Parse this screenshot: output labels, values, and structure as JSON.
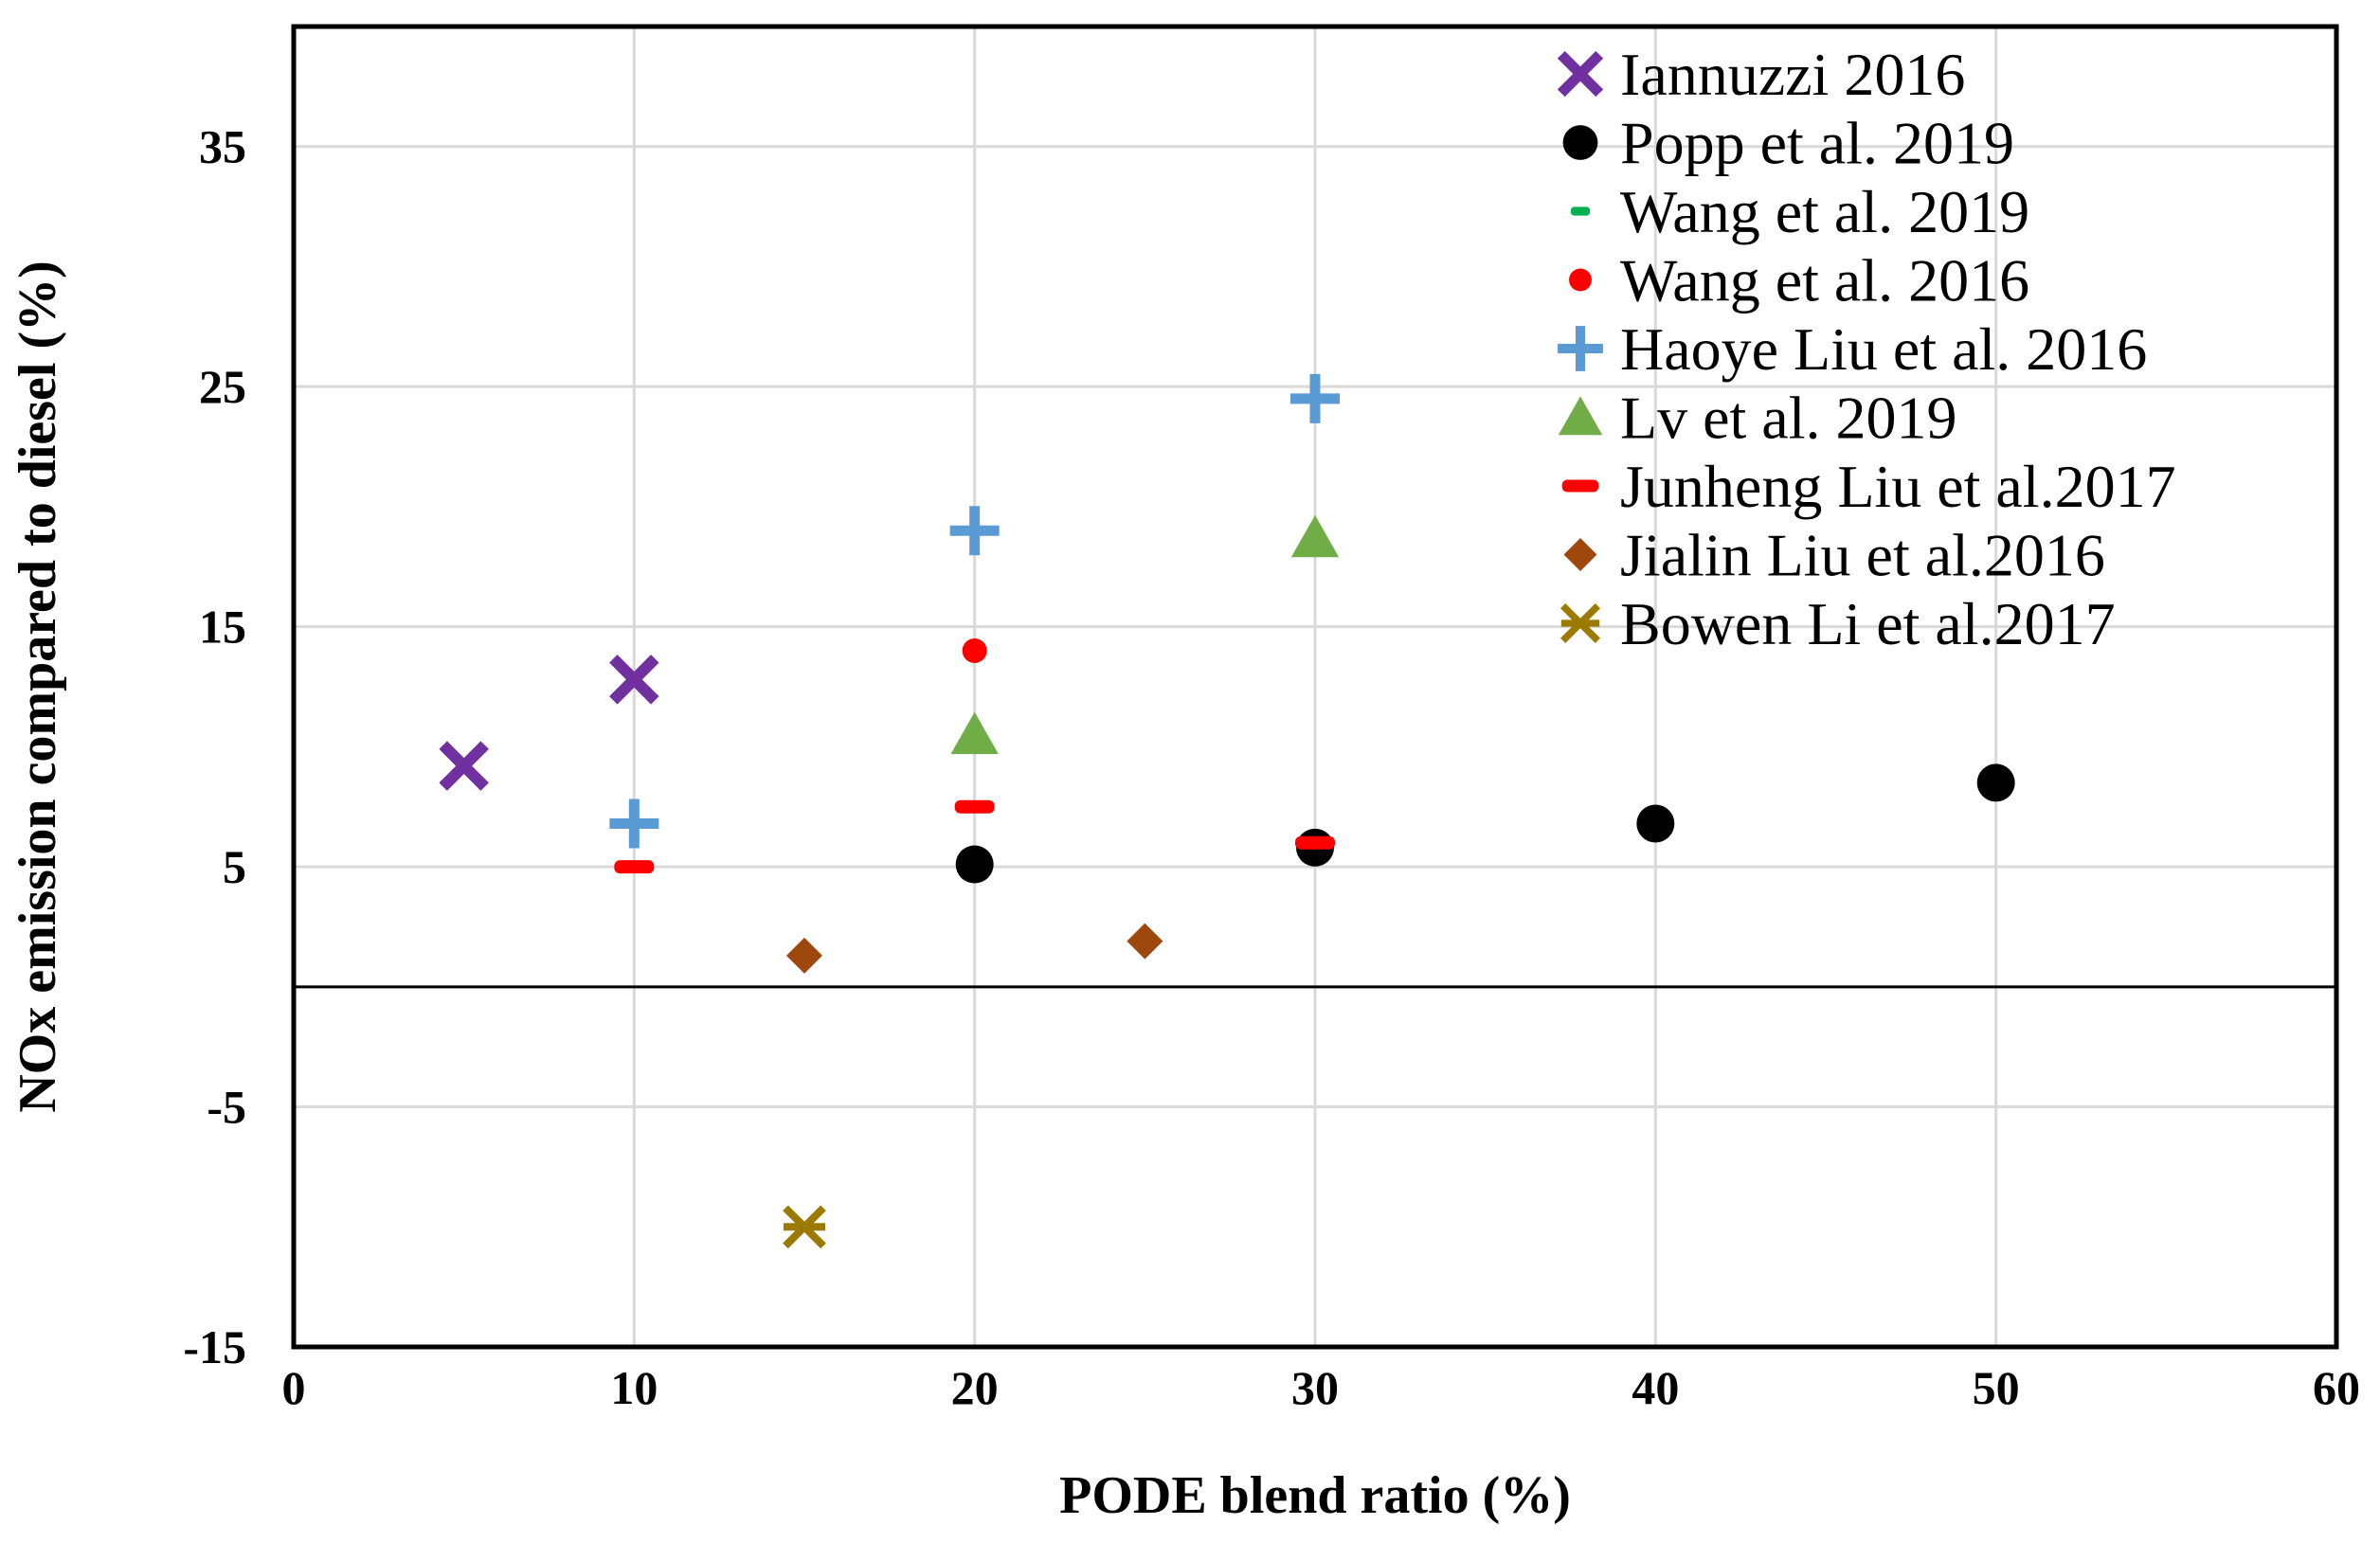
{
  "chart_data": {
    "type": "scatter",
    "title": "",
    "xlabel": "PODE blend ratio (%)",
    "ylabel": "NOx emission compared to diesel (%)",
    "xlim": [
      0,
      60
    ],
    "ylim": [
      -15,
      40
    ],
    "xticks": [
      0,
      10,
      20,
      30,
      40,
      50,
      60
    ],
    "yticks": [
      -15,
      -5,
      5,
      15,
      25,
      35
    ],
    "grid": true,
    "zero_line": true,
    "legend_position": "top-right",
    "series": [
      {
        "name": "Iannuzzi 2016",
        "marker": "x",
        "color": "#7030A0",
        "points": [
          [
            5,
            9.2
          ],
          [
            10,
            12.8
          ]
        ]
      },
      {
        "name": "Popp et al. 2019",
        "marker": "circle",
        "color": "#000000",
        "points": [
          [
            20,
            5.1
          ],
          [
            30,
            5.8
          ],
          [
            40,
            6.8
          ],
          [
            50,
            8.5
          ]
        ]
      },
      {
        "name": "Wang et al. 2019",
        "marker": "dash-small",
        "color": "#00B050",
        "points": []
      },
      {
        "name": "Wang et al. 2016",
        "marker": "dot",
        "color": "#FF0000",
        "points": [
          [
            20,
            14
          ]
        ]
      },
      {
        "name": "Haoye Liu et al. 2016",
        "marker": "plus",
        "color": "#5B9BD5",
        "points": [
          [
            10,
            6.8
          ],
          [
            20,
            19
          ],
          [
            30,
            24.5
          ]
        ]
      },
      {
        "name": "Lv et al. 2019",
        "marker": "triangle",
        "color": "#70AD47",
        "points": [
          [
            20,
            10.5
          ],
          [
            30,
            18.7
          ]
        ]
      },
      {
        "name": "Junheng Liu et al.2017",
        "marker": "dash",
        "color": "#FF0000",
        "points": [
          [
            10,
            5
          ],
          [
            20,
            7.5
          ],
          [
            30,
            6
          ]
        ]
      },
      {
        "name": "Jialin Liu et al.2016",
        "marker": "diamond",
        "color": "#9E480E",
        "points": [
          [
            15,
            1.3
          ],
          [
            25,
            1.9
          ]
        ]
      },
      {
        "name": "Bowen Li et al.2017",
        "marker": "asterisk",
        "color": "#9C7A00",
        "points": [
          [
            15,
            -10
          ]
        ]
      }
    ]
  }
}
